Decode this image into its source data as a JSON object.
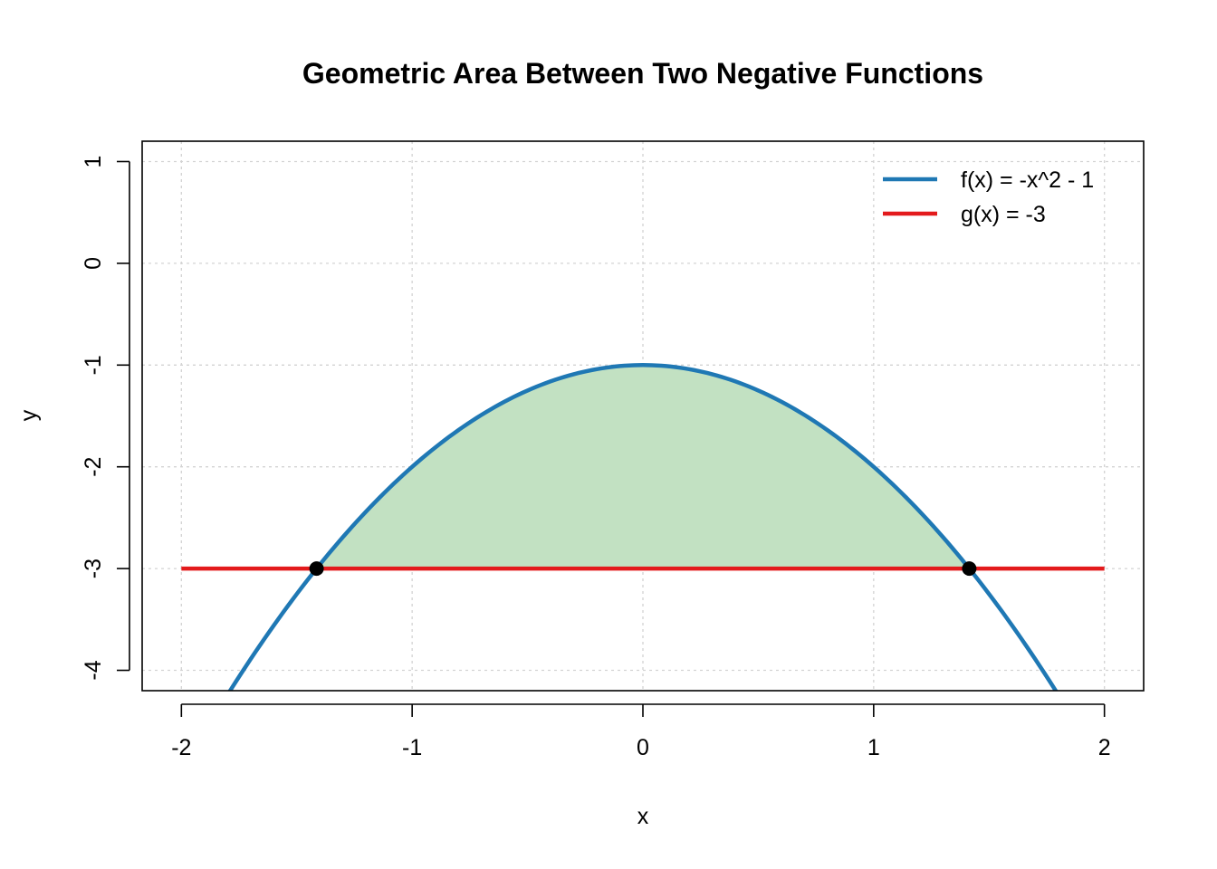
{
  "chart_data": {
    "type": "line",
    "title": "Geometric Area Between Two Negative Functions",
    "xlabel": "x",
    "ylabel": "y",
    "xlim": [
      -2.17,
      2.17
    ],
    "ylim": [
      -4.2,
      1.2
    ],
    "x_ticks": [
      -2,
      -1,
      0,
      1,
      2
    ],
    "x_tick_labels": [
      "-2",
      "-1",
      "0",
      "1",
      "2"
    ],
    "y_ticks": [
      -4,
      -3,
      -2,
      -1,
      0,
      1
    ],
    "y_tick_labels": [
      "-4",
      "-3",
      "-2",
      "-1",
      "0",
      "1"
    ],
    "grid": true,
    "legend_position": "top-right",
    "series": [
      {
        "name": "f(x) = -x^2 - 1",
        "color": "#1F78B4",
        "x": [
          -2,
          -1.8,
          -1.6,
          -1.4142,
          -1.2,
          -1,
          -0.8,
          -0.6,
          -0.4,
          -0.2,
          0,
          0.2,
          0.4,
          0.6,
          0.8,
          1,
          1.2,
          1.4142,
          1.6,
          1.8,
          2
        ],
        "y": [
          -5,
          -4.24,
          -3.56,
          -3,
          -2.44,
          -2,
          -1.64,
          -1.36,
          -1.16,
          -1.04,
          -1,
          -1.04,
          -1.16,
          -1.36,
          -1.64,
          -2,
          -2.44,
          -3,
          -3.56,
          -4.24,
          -5
        ]
      },
      {
        "name": "g(x) = -3",
        "color": "#E31A1C",
        "x": [
          -2,
          2
        ],
        "y": [
          -3,
          -3
        ]
      }
    ],
    "shaded_region": {
      "between": [
        "f(x) = -x^2 - 1",
        "g(x) = -3"
      ],
      "x_range": [
        -1.4142,
        1.4142
      ],
      "color": "#C2E1C2"
    },
    "intersection_points": [
      {
        "x": -1.4142,
        "y": -3
      },
      {
        "x": 1.4142,
        "y": -3
      }
    ]
  }
}
